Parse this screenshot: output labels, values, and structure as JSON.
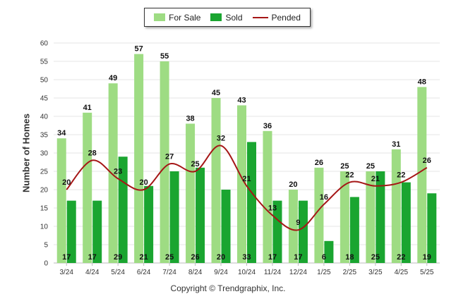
{
  "legend": {
    "for_sale": "For Sale",
    "sold": "Sold",
    "pended": "Pended"
  },
  "copyright": "Copyright © Trendgraphix, Inc.",
  "colors": {
    "for_sale": "#9edc83",
    "sold": "#1aa530",
    "pended": "#a51616",
    "grid": "#e6e6e6"
  },
  "chart_data": {
    "type": "bar",
    "categories": [
      "3/24",
      "4/24",
      "5/24",
      "6/24",
      "7/24",
      "8/24",
      "9/24",
      "10/24",
      "11/24",
      "12/24",
      "1/25",
      "2/25",
      "3/25",
      "4/25",
      "5/25"
    ],
    "series": [
      {
        "name": "For Sale",
        "type": "bar",
        "values": [
          34,
          41,
          49,
          57,
          55,
          38,
          45,
          43,
          36,
          20,
          26,
          25,
          25,
          31,
          48
        ]
      },
      {
        "name": "Sold",
        "type": "bar",
        "values": [
          17,
          17,
          29,
          21,
          25,
          26,
          20,
          33,
          17,
          17,
          6,
          18,
          25,
          22,
          19
        ]
      },
      {
        "name": "Pended",
        "type": "line",
        "values": [
          20,
          28,
          23,
          20,
          27,
          25,
          32,
          21,
          13,
          9,
          16,
          22,
          21,
          22,
          26
        ]
      }
    ],
    "ylabel": "Number of Homes",
    "ylim": [
      0,
      60
    ],
    "yticks": [
      0,
      5,
      10,
      15,
      20,
      25,
      30,
      35,
      40,
      45,
      50,
      55,
      60
    ],
    "grid": true,
    "legend_position": "top-center"
  }
}
